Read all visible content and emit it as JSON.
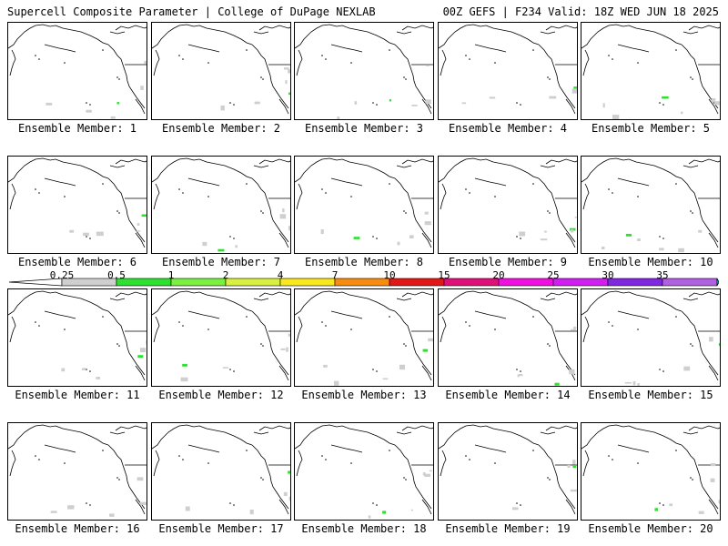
{
  "header": {
    "title": "Supercell Composite Parameter | College of DuPage NEXLAB",
    "run_info": "00Z GEFS | F234 Valid: 18Z WED JUN 18 2025"
  },
  "legend": {
    "ticks": [
      "0.25",
      "0.5",
      "1",
      "2",
      "4",
      "7",
      "10",
      "15",
      "20",
      "25",
      "30",
      "35"
    ],
    "colors": [
      "#cfcfcf",
      "#30e030",
      "#7cf040",
      "#d8f040",
      "#f8e820",
      "#f88c10",
      "#e01818",
      "#e0107a",
      "#f010e0",
      "#d020f0",
      "#8028e0",
      "#b060e0",
      "#20e0e8"
    ]
  },
  "members": [
    {
      "label": "Ensemble Member: 1"
    },
    {
      "label": "Ensemble Member: 2"
    },
    {
      "label": "Ensemble Member: 3"
    },
    {
      "label": "Ensemble Member: 4"
    },
    {
      "label": "Ensemble Member: 5"
    },
    {
      "label": "Ensemble Member: 6"
    },
    {
      "label": "Ensemble Member: 7"
    },
    {
      "label": "Ensemble Member: 8"
    },
    {
      "label": "Ensemble Member: 9"
    },
    {
      "label": "Ensemble Member: 10"
    },
    {
      "label": "Ensemble Member: 11"
    },
    {
      "label": "Ensemble Member: 12"
    },
    {
      "label": "Ensemble Member: 13"
    },
    {
      "label": "Ensemble Member: 14"
    },
    {
      "label": "Ensemble Member: 15"
    },
    {
      "label": "Ensemble Member: 16"
    },
    {
      "label": "Ensemble Member: 17"
    },
    {
      "label": "Ensemble Member: 18"
    },
    {
      "label": "Ensemble Member: 19"
    },
    {
      "label": "Ensemble Member: 20"
    }
  ]
}
